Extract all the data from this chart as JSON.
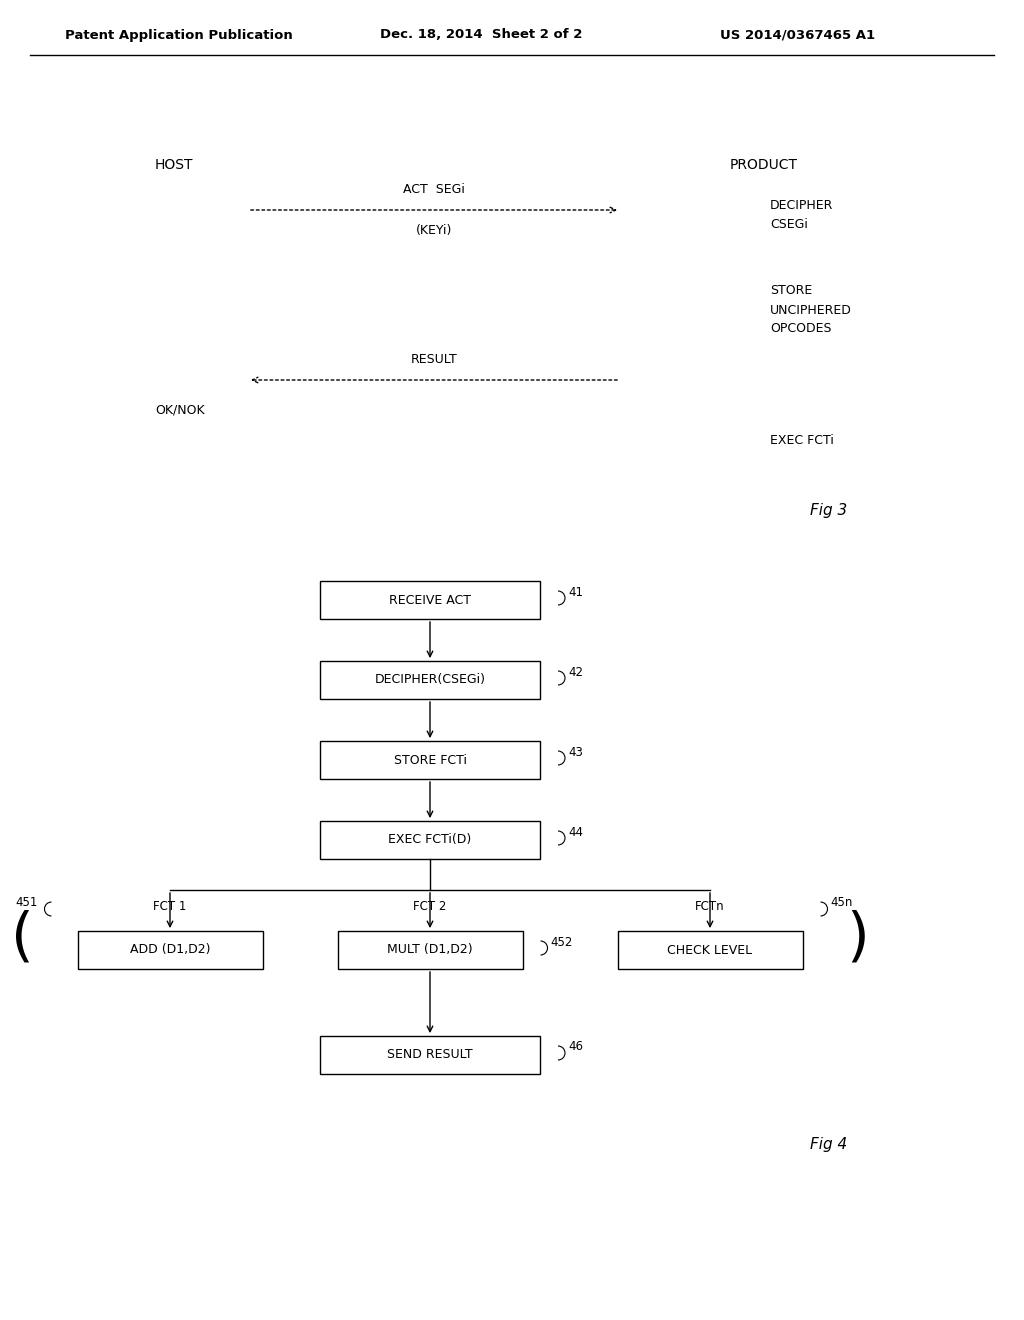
{
  "bg_color": "#ffffff",
  "header_text1": "Patent Application Publication",
  "header_text2": "Dec. 18, 2014  Sheet 2 of 2",
  "header_text3": "US 2014/0367465 A1",
  "fig3_label": "Fig 3",
  "fig4_label": "Fig 4",
  "fig3": {
    "host_label": "HOST",
    "product_label": "PRODUCT",
    "arrow1_label_top": "ACT  SEGi",
    "arrow1_label_bot": "(KEYi)",
    "arrow2_label": "RESULT",
    "ok_nok": "OK/NOK",
    "right_text1": "DECIPHER\nCSEGi",
    "right_text2": "STORE\nUNCIPHERED\nOPCODES",
    "right_text3": "EXEC FCTi"
  },
  "fig4": {
    "boxes": [
      {
        "label": "RECEIVE ACT",
        "num": "41"
      },
      {
        "label": "DECIPHER(CSEGi)",
        "num": "42"
      },
      {
        "label": "STORE FCTi",
        "num": "43"
      },
      {
        "label": "EXEC FCTi(D)",
        "num": "44"
      }
    ],
    "branch_left_title": "FCT 1",
    "branch_left_box": "ADD (D1,D2)",
    "branch_left_num": "451",
    "branch_center_title": "FCT 2",
    "branch_center_box": "MULT (D1,D2)",
    "branch_center_num": "452",
    "branch_right_title": "FCTn",
    "branch_right_box": "CHECK LEVEL",
    "branch_right_num": "45n",
    "bottom_box": "SEND RESULT",
    "bottom_num": "46"
  }
}
